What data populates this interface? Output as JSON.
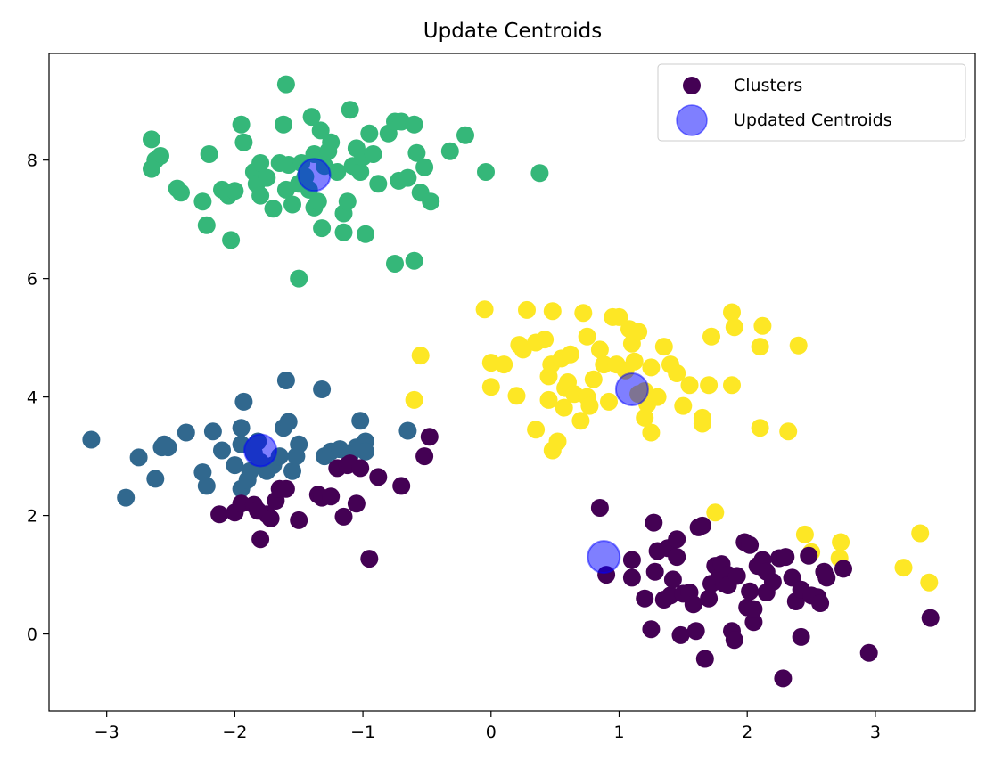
{
  "chart_data": {
    "type": "scatter",
    "title": "Update Centroids",
    "xlabel": "",
    "ylabel": "",
    "xlim": [
      -3.45,
      3.78
    ],
    "ylim": [
      -1.3,
      9.8
    ],
    "xticks": [
      -3,
      -2,
      -1,
      0,
      1,
      2,
      3
    ],
    "xtick_labels": [
      "−3",
      "−2",
      "−1",
      "0",
      "1",
      "2",
      "3"
    ],
    "yticks": [
      0,
      2,
      4,
      6,
      8
    ],
    "ytick_labels": [
      "0",
      "2",
      "4",
      "6",
      "8"
    ],
    "legend": {
      "placement": "top-right",
      "entries": [
        "Clusters",
        "Updated Centroids"
      ]
    },
    "colors": {
      "cluster_purple": "#440154",
      "cluster_blue": "#31688e",
      "cluster_green": "#35b779",
      "cluster_yellow": "#fde725",
      "centroid": "#0000ff"
    },
    "series": [
      {
        "name": "cluster-green",
        "color": "#35b779",
        "points": [
          [
            -2.65,
            8.35
          ],
          [
            -2.62,
            8.0
          ],
          [
            -2.58,
            8.07
          ],
          [
            -2.65,
            7.85
          ],
          [
            -2.45,
            7.52
          ],
          [
            -2.42,
            7.45
          ],
          [
            -2.25,
            7.3
          ],
          [
            -2.2,
            8.1
          ],
          [
            -2.22,
            6.9
          ],
          [
            -2.1,
            7.5
          ],
          [
            -2.05,
            7.4
          ],
          [
            -2.03,
            6.65
          ],
          [
            -2.0,
            7.48
          ],
          [
            -1.95,
            8.6
          ],
          [
            -1.93,
            8.3
          ],
          [
            -1.85,
            7.8
          ],
          [
            -1.83,
            7.6
          ],
          [
            -1.8,
            7.95
          ],
          [
            -1.8,
            7.4
          ],
          [
            -1.75,
            7.7
          ],
          [
            -1.7,
            7.18
          ],
          [
            -1.65,
            7.95
          ],
          [
            -1.62,
            8.6
          ],
          [
            -1.6,
            7.5
          ],
          [
            -1.58,
            7.92
          ],
          [
            -1.55,
            7.25
          ],
          [
            -1.5,
            7.6
          ],
          [
            -1.48,
            7.95
          ],
          [
            -1.45,
            7.72
          ],
          [
            -1.42,
            7.5
          ],
          [
            -1.4,
            8.73
          ],
          [
            -1.38,
            7.2
          ],
          [
            -1.38,
            8.1
          ],
          [
            -1.35,
            7.3
          ],
          [
            -1.33,
            8.5
          ],
          [
            -1.32,
            6.85
          ],
          [
            -1.3,
            7.9
          ],
          [
            -1.27,
            8.15
          ],
          [
            -1.25,
            8.3
          ],
          [
            -1.2,
            7.8
          ],
          [
            -1.15,
            7.1
          ],
          [
            -1.15,
            6.78
          ],
          [
            -1.12,
            7.3
          ],
          [
            -1.1,
            8.85
          ],
          [
            -1.08,
            7.9
          ],
          [
            -1.05,
            8.2
          ],
          [
            -1.02,
            7.8
          ],
          [
            -1.0,
            8.05
          ],
          [
            -0.98,
            6.75
          ],
          [
            -0.95,
            8.45
          ],
          [
            -0.92,
            8.1
          ],
          [
            -0.88,
            7.6
          ],
          [
            -0.8,
            8.45
          ],
          [
            -0.75,
            8.65
          ],
          [
            -0.72,
            7.65
          ],
          [
            -0.7,
            8.65
          ],
          [
            -0.65,
            7.7
          ],
          [
            -0.6,
            8.6
          ],
          [
            -0.58,
            8.12
          ],
          [
            -0.55,
            7.45
          ],
          [
            -0.52,
            7.88
          ],
          [
            -0.47,
            7.3
          ],
          [
            -0.32,
            8.15
          ],
          [
            -0.2,
            8.42
          ],
          [
            -0.75,
            6.25
          ],
          [
            -0.6,
            6.3
          ],
          [
            -0.04,
            7.8
          ],
          [
            0.38,
            7.78
          ],
          [
            -1.5,
            6.0
          ],
          [
            -1.6,
            9.28
          ]
        ]
      },
      {
        "name": "cluster-blue",
        "color": "#31688e",
        "points": [
          [
            -3.12,
            3.28
          ],
          [
            -2.85,
            2.3
          ],
          [
            -2.75,
            2.98
          ],
          [
            -2.62,
            2.62
          ],
          [
            -2.57,
            3.15
          ],
          [
            -2.55,
            3.2
          ],
          [
            -2.52,
            3.15
          ],
          [
            -2.38,
            3.4
          ],
          [
            -2.25,
            2.73
          ],
          [
            -2.22,
            2.5
          ],
          [
            -2.17,
            3.42
          ],
          [
            -2.1,
            3.1
          ],
          [
            -2.0,
            2.85
          ],
          [
            -1.95,
            2.45
          ],
          [
            -1.93,
            3.92
          ],
          [
            -1.9,
            2.6
          ],
          [
            -1.88,
            2.75
          ],
          [
            -1.85,
            3.05
          ],
          [
            -1.82,
            3.25
          ],
          [
            -1.8,
            2.9
          ],
          [
            -1.75,
            2.75
          ],
          [
            -1.7,
            2.85
          ],
          [
            -1.65,
            3.0
          ],
          [
            -1.62,
            3.48
          ],
          [
            -1.6,
            4.28
          ],
          [
            -1.58,
            3.58
          ],
          [
            -1.55,
            2.75
          ],
          [
            -1.52,
            3.0
          ],
          [
            -1.5,
            3.2
          ],
          [
            -1.32,
            4.13
          ],
          [
            -1.3,
            3.0
          ],
          [
            -1.25,
            3.08
          ],
          [
            -1.18,
            3.12
          ],
          [
            -1.1,
            3.02
          ],
          [
            -1.05,
            3.15
          ],
          [
            -1.02,
            3.6
          ],
          [
            -0.98,
            3.25
          ],
          [
            -0.98,
            3.08
          ],
          [
            -0.65,
            3.43
          ],
          [
            -1.95,
            3.48
          ],
          [
            -1.8,
            2.85
          ],
          [
            -1.95,
            3.2
          ]
        ]
      },
      {
        "name": "cluster-yellow",
        "color": "#fde725",
        "points": [
          [
            -0.05,
            5.48
          ],
          [
            0.0,
            4.58
          ],
          [
            0.0,
            4.17
          ],
          [
            0.1,
            4.55
          ],
          [
            0.2,
            4.02
          ],
          [
            0.22,
            4.88
          ],
          [
            0.25,
            4.8
          ],
          [
            0.28,
            5.47
          ],
          [
            0.35,
            4.92
          ],
          [
            0.35,
            3.45
          ],
          [
            0.42,
            4.97
          ],
          [
            0.45,
            4.35
          ],
          [
            0.45,
            3.95
          ],
          [
            0.47,
            4.55
          ],
          [
            0.48,
            5.45
          ],
          [
            0.48,
            3.1
          ],
          [
            0.52,
            3.25
          ],
          [
            0.55,
            4.65
          ],
          [
            0.57,
            3.82
          ],
          [
            0.58,
            4.15
          ],
          [
            0.6,
            4.25
          ],
          [
            0.62,
            4.72
          ],
          [
            0.65,
            4.05
          ],
          [
            0.7,
            3.6
          ],
          [
            0.72,
            5.42
          ],
          [
            0.75,
            5.02
          ],
          [
            0.75,
            4.0
          ],
          [
            0.77,
            3.85
          ],
          [
            0.8,
            4.3
          ],
          [
            0.85,
            4.8
          ],
          [
            0.88,
            4.55
          ],
          [
            0.92,
            3.92
          ],
          [
            0.95,
            5.35
          ],
          [
            0.98,
            4.55
          ],
          [
            1.0,
            5.35
          ],
          [
            1.05,
            4.45
          ],
          [
            1.08,
            5.15
          ],
          [
            1.1,
            4.9
          ],
          [
            1.12,
            4.6
          ],
          [
            1.15,
            5.1
          ],
          [
            1.15,
            4.05
          ],
          [
            1.2,
            3.65
          ],
          [
            1.22,
            3.88
          ],
          [
            1.25,
            4.5
          ],
          [
            1.25,
            3.4
          ],
          [
            1.3,
            4.0
          ],
          [
            1.35,
            4.85
          ],
          [
            1.4,
            4.55
          ],
          [
            1.45,
            4.4
          ],
          [
            1.5,
            3.85
          ],
          [
            1.55,
            4.2
          ],
          [
            1.65,
            3.65
          ],
          [
            1.65,
            3.55
          ],
          [
            1.7,
            4.2
          ],
          [
            1.72,
            5.02
          ],
          [
            1.88,
            5.43
          ],
          [
            1.88,
            4.2
          ],
          [
            1.9,
            5.18
          ],
          [
            2.1,
            4.85
          ],
          [
            2.1,
            3.48
          ],
          [
            2.12,
            5.2
          ],
          [
            2.32,
            3.42
          ],
          [
            2.4,
            4.87
          ],
          [
            -0.55,
            4.7
          ],
          [
            -0.6,
            3.95
          ],
          [
            1.75,
            2.05
          ],
          [
            2.45,
            1.68
          ],
          [
            2.5,
            1.38
          ],
          [
            2.72,
            1.28
          ],
          [
            2.73,
            1.55
          ],
          [
            3.22,
            1.12
          ],
          [
            3.35,
            1.7
          ],
          [
            3.42,
            0.87
          ],
          [
            1.2,
            4.1
          ]
        ]
      },
      {
        "name": "cluster-purple",
        "color": "#440154",
        "points": [
          [
            -2.12,
            2.02
          ],
          [
            -2.0,
            2.05
          ],
          [
            -1.95,
            2.2
          ],
          [
            -1.85,
            2.18
          ],
          [
            -1.82,
            2.08
          ],
          [
            -1.8,
            1.6
          ],
          [
            -1.75,
            2.02
          ],
          [
            -1.72,
            1.95
          ],
          [
            -1.68,
            2.25
          ],
          [
            -1.65,
            2.45
          ],
          [
            -1.6,
            2.45
          ],
          [
            -1.5,
            1.92
          ],
          [
            -1.35,
            2.35
          ],
          [
            -1.32,
            2.3
          ],
          [
            -1.25,
            2.32
          ],
          [
            -1.2,
            2.8
          ],
          [
            -1.15,
            1.98
          ],
          [
            -1.12,
            2.85
          ],
          [
            -1.1,
            2.88
          ],
          [
            -1.05,
            2.2
          ],
          [
            -1.02,
            2.8
          ],
          [
            -0.95,
            1.27
          ],
          [
            -0.88,
            2.65
          ],
          [
            -0.7,
            2.5
          ],
          [
            -0.52,
            3.0
          ],
          [
            -0.48,
            3.33
          ],
          [
            0.85,
            2.13
          ],
          [
            0.9,
            1.0
          ],
          [
            1.1,
            0.95
          ],
          [
            1.1,
            1.25
          ],
          [
            1.2,
            0.6
          ],
          [
            1.25,
            0.08
          ],
          [
            1.27,
            1.88
          ],
          [
            1.28,
            1.05
          ],
          [
            1.3,
            1.4
          ],
          [
            1.35,
            0.58
          ],
          [
            1.38,
            1.45
          ],
          [
            1.4,
            0.65
          ],
          [
            1.42,
            0.92
          ],
          [
            1.45,
            1.6
          ],
          [
            1.45,
            1.3
          ],
          [
            1.48,
            -0.02
          ],
          [
            1.5,
            0.68
          ],
          [
            1.55,
            0.7
          ],
          [
            1.58,
            0.5
          ],
          [
            1.6,
            0.05
          ],
          [
            1.62,
            1.8
          ],
          [
            1.65,
            1.83
          ],
          [
            1.67,
            -0.42
          ],
          [
            1.7,
            0.6
          ],
          [
            1.72,
            0.85
          ],
          [
            1.75,
            1.15
          ],
          [
            1.78,
            0.95
          ],
          [
            1.8,
            1.18
          ],
          [
            1.82,
            0.85
          ],
          [
            1.85,
            1.0
          ],
          [
            1.85,
            0.82
          ],
          [
            1.88,
            0.05
          ],
          [
            1.9,
            -0.1
          ],
          [
            1.92,
            0.98
          ],
          [
            1.98,
            1.55
          ],
          [
            2.0,
            0.45
          ],
          [
            2.02,
            0.72
          ],
          [
            2.02,
            1.5
          ],
          [
            2.05,
            0.2
          ],
          [
            2.05,
            0.42
          ],
          [
            2.08,
            1.15
          ],
          [
            2.12,
            1.25
          ],
          [
            2.15,
            1.05
          ],
          [
            2.15,
            0.7
          ],
          [
            2.2,
            0.88
          ],
          [
            2.25,
            1.28
          ],
          [
            2.28,
            -0.75
          ],
          [
            2.3,
            1.3
          ],
          [
            2.35,
            0.95
          ],
          [
            2.38,
            0.55
          ],
          [
            2.42,
            0.75
          ],
          [
            2.42,
            -0.05
          ],
          [
            2.48,
            1.32
          ],
          [
            2.5,
            0.65
          ],
          [
            2.55,
            0.62
          ],
          [
            2.57,
            0.52
          ],
          [
            2.6,
            1.05
          ],
          [
            2.62,
            0.95
          ],
          [
            2.75,
            1.1
          ],
          [
            2.95,
            -0.32
          ],
          [
            3.43,
            0.27
          ]
        ]
      }
    ],
    "centroids": [
      [
        -1.38,
        7.75
      ],
      [
        1.1,
        4.13
      ],
      [
        -1.8,
        3.1
      ],
      [
        0.88,
        1.3
      ]
    ]
  }
}
